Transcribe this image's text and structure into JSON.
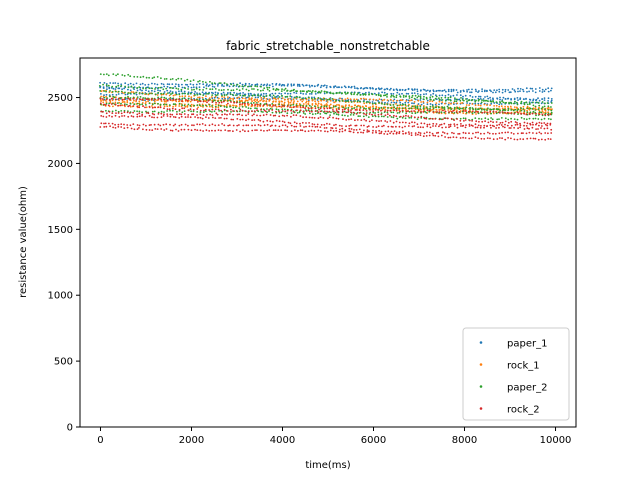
{
  "chart_data": {
    "type": "scatter",
    "title": "fabric_stretchable_nonstretchable",
    "xlabel": "time(ms)",
    "ylabel": "resistance value(ohm)",
    "xlim": [
      -450,
      10450
    ],
    "ylim": [
      0,
      2800
    ],
    "xticks": [
      0,
      2000,
      4000,
      6000,
      8000,
      10000
    ],
    "yticks": [
      0,
      500,
      1000,
      1500,
      2000,
      2500
    ],
    "grid": false,
    "legend_position": "lower right",
    "series": [
      {
        "name": "paper_1",
        "color": "#1f77b4",
        "x_range": [
          0,
          9900
        ],
        "bands": [
          [
            2620,
            2540
          ],
          [
            2590,
            2560
          ],
          [
            2560,
            2500
          ],
          [
            2530,
            2470
          ],
          [
            2500,
            2450
          ]
        ]
      },
      {
        "name": "rock_1",
        "color": "#ff7f0e",
        "x_range": [
          0,
          9900
        ],
        "bands": [
          [
            2540,
            2430
          ],
          [
            2510,
            2410
          ],
          [
            2490,
            2400
          ],
          [
            2470,
            2390
          ],
          [
            2450,
            2380
          ]
        ]
      },
      {
        "name": "paper_2",
        "color": "#2ca02c",
        "x_range": [
          0,
          9900
        ],
        "bands": [
          [
            2670,
            2430
          ],
          [
            2600,
            2460
          ],
          [
            2560,
            2400
          ],
          [
            2500,
            2380
          ],
          [
            2450,
            2360
          ],
          [
            2410,
            2330
          ]
        ]
      },
      {
        "name": "rock_2",
        "color": "#d62728",
        "x_range": [
          0,
          9900
        ],
        "bands": [
          [
            2490,
            2360
          ],
          [
            2450,
            2310
          ],
          [
            2400,
            2280
          ],
          [
            2360,
            2250
          ],
          [
            2310,
            2220
          ],
          [
            2280,
            2190
          ]
        ]
      }
    ]
  }
}
